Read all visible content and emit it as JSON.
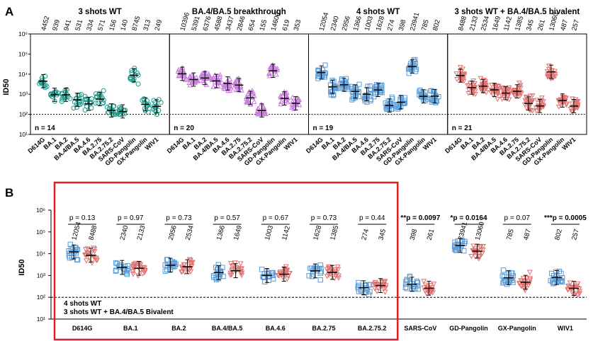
{
  "panel_letters": [
    "A",
    "B"
  ],
  "axis_label_y": "ID50",
  "y_ticks": [
    "10⁶",
    "10⁵",
    "10⁴",
    "10³",
    "10²",
    "10¹"
  ],
  "chart_data": [
    {
      "type": "scatter",
      "panel": "A",
      "subplots": [
        {
          "title": "3 shots WT",
          "n_label": "n = 14",
          "color": "#1a9a8a",
          "marker": "circle",
          "categories": [
            "D614G",
            "BA.1",
            "BA.2",
            "BA.4/BA.5",
            "BA.4.6",
            "BA.2.75",
            "BA.2.75.2",
            "SARS-CoV",
            "GD-Pangolin",
            "GX-Pangolin",
            "WIV1"
          ],
          "values": [
            4452,
            939,
            941,
            531,
            334,
            571,
            156,
            140,
            8745,
            313,
            249
          ]
        },
        {
          "title": "BA.4/BA.5 breakthrough",
          "n_label": "n = 20",
          "color": "#c77ddb",
          "marker": "triangle-up",
          "categories": [
            "D614G",
            "BA.1",
            "BA.2",
            "BA.4/BA.5",
            "BA.4.6",
            "BA.2.75",
            "BA.2.75.2",
            "SARS-CoV",
            "GD-Pangolin",
            "GX-Pangolin",
            "WIV1"
          ],
          "values": [
            10396,
            5391,
            6376,
            4588,
            3437,
            2846,
            654,
            155,
            14600,
            619,
            353
          ]
        },
        {
          "title": "4 shots WT",
          "n_label": "n = 19",
          "color": "#5b9bd5",
          "marker": "square",
          "categories": [
            "D614G",
            "BA.1",
            "BA.2",
            "BA.4/BA.5",
            "BA.4.6",
            "BA.2.75",
            "BA.2.75.2",
            "SARS-CoV",
            "GD-Pangolin",
            "GX-Pangolin",
            "WIV1"
          ],
          "values": [
            12054,
            2340,
            2956,
            1366,
            1003,
            1628,
            274,
            398,
            23941,
            785,
            802
          ]
        },
        {
          "title": "3 shots WT + BA.4/BA.5 bivalent",
          "n_label": "n = 21",
          "color": "#e0716f",
          "marker": "triangle-down",
          "categories": [
            "D614G",
            "BA.1",
            "BA.2",
            "BA.4/BA.5",
            "BA.4.6",
            "BA.2.75",
            "BA.2.75.2",
            "SARS-CoV",
            "GD-Pangolin",
            "GX-Pangolin",
            "WIV1"
          ],
          "values": [
            8488,
            2133,
            2534,
            1649,
            1142,
            1385,
            345,
            261,
            13060,
            487,
            257
          ]
        }
      ],
      "ylim": [
        10,
        1000000
      ],
      "y_scale": "log",
      "detection_limit": 100
    },
    {
      "type": "scatter",
      "panel": "B",
      "categories": [
        "D614G",
        "BA.1",
        "BA.2",
        "BA.4/BA.5",
        "BA.4.6",
        "BA.2.75",
        "BA.2.75.2",
        "SARS-CoV",
        "GD-Pangolin",
        "GX-Pangolin",
        "WIV1"
      ],
      "series": [
        {
          "name": "4 shots WT",
          "color": "#5b9bd5",
          "marker": "square",
          "values": [
            12054,
            2340,
            2956,
            1366,
            1003,
            1628,
            274,
            398,
            23941,
            785,
            802
          ]
        },
        {
          "name": "3 shots WT + BA.4/BA.5 Bivalent",
          "color": "#e0716f",
          "marker": "triangle-down",
          "values": [
            8488,
            2133,
            2534,
            1649,
            1142,
            1385,
            345,
            261,
            13060,
            487,
            257
          ]
        }
      ],
      "p_values": [
        {
          "stars": "",
          "text": "p = 0.13"
        },
        {
          "stars": "",
          "text": "p = 0.97"
        },
        {
          "stars": "",
          "text": "p = 0.73"
        },
        {
          "stars": "",
          "text": "p = 0.57"
        },
        {
          "stars": "",
          "text": "p = 0.67"
        },
        {
          "stars": "",
          "text": "p = 0.73"
        },
        {
          "stars": "",
          "text": "p = 0.44"
        },
        {
          "stars": "**",
          "text": "p = 0.0097"
        },
        {
          "stars": "*",
          "text": "p = 0.0164"
        },
        {
          "stars": "",
          "text": "p = 0.07"
        },
        {
          "stars": "***",
          "text": "p = 0.0005"
        }
      ],
      "legend_lines": [
        "4 shots WT",
        "3 shots WT + BA.4/BA.5 Bivalent"
      ],
      "ylim": [
        10,
        1000000
      ],
      "y_scale": "log",
      "detection_limit": 100,
      "highlight_box": "first seven categories",
      "highlight_color": "#e02020"
    }
  ]
}
